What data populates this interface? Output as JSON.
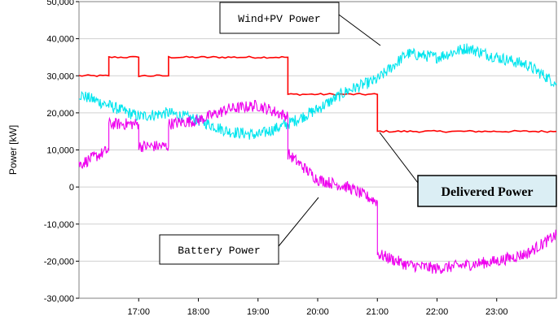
{
  "chart_data": {
    "type": "line",
    "title": "",
    "xlabel": "",
    "ylabel": "Power [kW]",
    "xlim": [
      16.0,
      24.0
    ],
    "ylim": [
      -30000,
      50000
    ],
    "x_ticks": [
      17,
      18,
      19,
      20,
      21,
      22,
      23
    ],
    "x_tick_labels": [
      "17:00",
      "18:00",
      "19:00",
      "20:00",
      "21:00",
      "22:00",
      "23:00"
    ],
    "y_ticks": [
      -30000,
      -20000,
      -10000,
      0,
      10000,
      20000,
      30000,
      40000,
      50000
    ],
    "y_tick_labels": [
      "-30,000",
      "-20,000",
      "-10,000",
      "0",
      "10,000",
      "20,000",
      "30,000",
      "40,000",
      "50,000"
    ],
    "grid": "horizontal",
    "series": [
      {
        "name": "Delivered Power",
        "color": "#ff0000",
        "x": [
          16.0,
          16.5,
          16.5,
          17.0,
          17.0,
          17.5,
          17.5,
          19.5,
          19.5,
          21.0,
          21.0,
          24.0
        ],
        "y": [
          30000,
          30000,
          35000,
          35000,
          30000,
          30000,
          35000,
          35000,
          25000,
          25000,
          15000,
          15000
        ]
      },
      {
        "name": "Wind+PV Power",
        "color": "#00e5ee",
        "x": [
          16.0,
          16.5,
          17.0,
          17.5,
          18.0,
          18.5,
          19.0,
          19.5,
          20.0,
          20.5,
          21.0,
          21.5,
          22.0,
          22.5,
          23.0,
          23.5,
          24.0
        ],
        "y": [
          25000,
          22000,
          19000,
          20000,
          18000,
          15000,
          14000,
          17000,
          21000,
          26000,
          29000,
          36000,
          35000,
          37500,
          35000,
          33000,
          28000
        ]
      },
      {
        "name": "Battery Power",
        "color": "#ee00ee",
        "x": [
          16.0,
          16.5,
          16.5,
          17.0,
          17.0,
          17.5,
          17.5,
          18.0,
          18.5,
          19.0,
          19.5,
          19.5,
          20.0,
          20.5,
          21.0,
          21.0,
          21.5,
          22.0,
          22.5,
          23.0,
          23.5,
          24.0
        ],
        "y": [
          6000,
          10000,
          17000,
          17000,
          11000,
          11000,
          17000,
          18000,
          21000,
          22000,
          19000,
          9000,
          2000,
          0,
          -4000,
          -18000,
          -21000,
          -22000,
          -21000,
          -20000,
          -18000,
          -13000
        ]
      }
    ],
    "annotations": [
      {
        "text": "Wind+PV Power",
        "series": "Wind+PV Power"
      },
      {
        "text": "Delivered Power",
        "series": "Delivered Power",
        "highlight": true
      },
      {
        "text": "Battery Power",
        "series": "Battery Power"
      }
    ]
  }
}
